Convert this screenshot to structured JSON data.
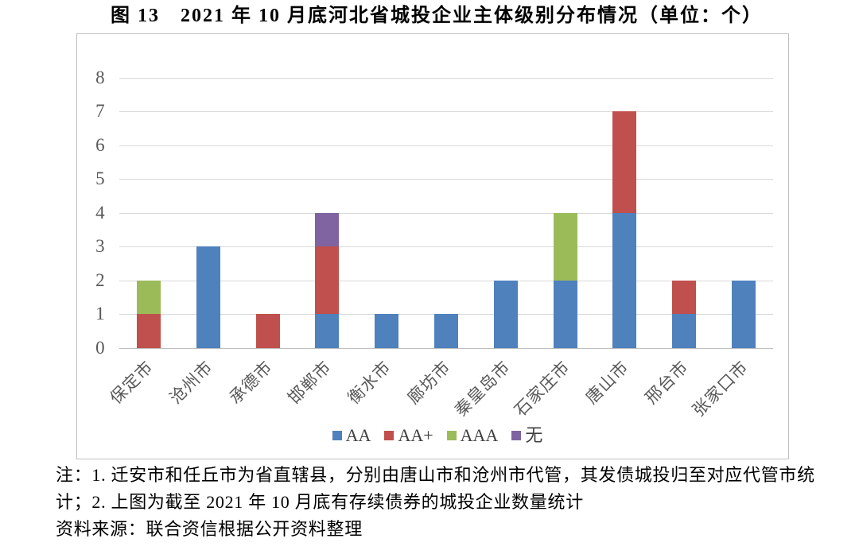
{
  "title": "图 13　2021 年 10 月底河北省城投企业主体级别分布情况（单位：个）",
  "notes": {
    "line1": "注：1. 迁安市和任丘市为省直辖县，分别由唐山市和沧州市代管，其发债城投归至对应代管市统",
    "line2": "计；2. 上图为截至 2021 年 10 月底有存续债券的城投企业数量统计",
    "line3": "资料来源：联合资信根据公开资料整理"
  },
  "chart_data": {
    "type": "bar",
    "stacked": true,
    "title": "图 13　2021 年 10 月底河北省城投企业主体级别分布情况（单位：个）",
    "unit_label": "个",
    "categories": [
      "保定市",
      "沧州市",
      "承德市",
      "邯郸市",
      "衡水市",
      "廊坊市",
      "秦皇岛市",
      "石家庄市",
      "唐山市",
      "邢台市",
      "张家口市"
    ],
    "series": [
      {
        "name": "AA",
        "color": "#4f81bd",
        "values": [
          0,
          3,
          0,
          1,
          1,
          1,
          2,
          2,
          4,
          1,
          2
        ]
      },
      {
        "name": "AA+",
        "color": "#c0504d",
        "values": [
          1,
          0,
          1,
          2,
          0,
          0,
          0,
          0,
          3,
          1,
          0
        ]
      },
      {
        "name": "AAA",
        "color": "#9bbb59",
        "values": [
          1,
          0,
          0,
          0,
          0,
          0,
          0,
          2,
          0,
          0,
          0
        ]
      },
      {
        "name": "无",
        "color": "#8064a2",
        "values": [
          0,
          0,
          0,
          1,
          0,
          0,
          0,
          0,
          0,
          0,
          0
        ]
      }
    ],
    "totals": [
      2,
      3,
      1,
      4,
      1,
      1,
      2,
      4,
      7,
      2,
      2
    ],
    "xlabel": "",
    "ylabel": "",
    "ylim": [
      0,
      8
    ],
    "yticks": [
      0,
      1,
      2,
      3,
      4,
      5,
      6,
      7,
      8
    ],
    "grid": true,
    "legend_position": "bottom-center",
    "colors": {
      "gridline": "#d9d9d9",
      "axis_line": "#bfbfbf",
      "frame_border": "#bfbfbf",
      "tick_text": "#595959",
      "legend_text": "#404040",
      "title_text": "#000000",
      "note_text": "#000000"
    }
  }
}
